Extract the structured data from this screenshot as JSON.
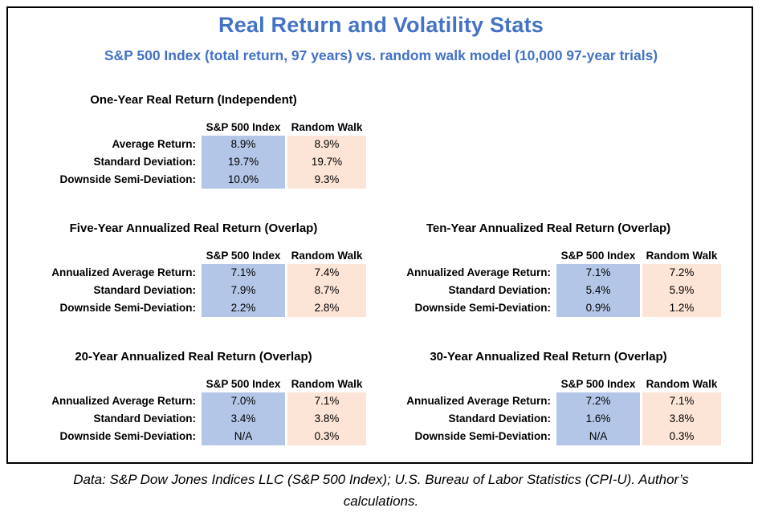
{
  "page": {
    "title": "Real Return and Volatility Stats",
    "subtitle": "S&P 500 Index (total return, 97 years) vs. random walk model (10,000 97-year trials)",
    "footer": "Data: S&P Dow Jones Indices LLC (S&P 500 Index); U.S. Bureau of Labor Statistics (CPI-U). Author’s calculations."
  },
  "colors": {
    "accent_blue": "#4472C4",
    "sp500_column_fill": "#B4C6E7",
    "random_walk_column_fill": "#FCE4D6",
    "border": "#000000",
    "background": "#FFFFFF"
  },
  "chart_data": [
    {
      "type": "table",
      "title": "One-Year Real Return (Independent)",
      "columns": [
        "S&P 500 Index",
        "Random Walk"
      ],
      "rows": [
        {
          "label": "Average Return:",
          "values": [
            "8.9%",
            "8.9%"
          ]
        },
        {
          "label": "Standard Deviation:",
          "values": [
            "19.7%",
            "19.7%"
          ]
        },
        {
          "label": "Downside Semi-Deviation:",
          "values": [
            "10.0%",
            "9.3%"
          ]
        }
      ]
    },
    {
      "type": "table",
      "title": "Five-Year Annualized Real Return (Overlap)",
      "columns": [
        "S&P 500 Index",
        "Random Walk"
      ],
      "rows": [
        {
          "label": "Annualized Average Return:",
          "values": [
            "7.1%",
            "7.4%"
          ]
        },
        {
          "label": "Standard Deviation:",
          "values": [
            "7.9%",
            "8.7%"
          ]
        },
        {
          "label": "Downside Semi-Deviation:",
          "values": [
            "2.2%",
            "2.8%"
          ]
        }
      ]
    },
    {
      "type": "table",
      "title": "Ten-Year Annualized Real Return (Overlap)",
      "columns": [
        "S&P 500 Index",
        "Random Walk"
      ],
      "rows": [
        {
          "label": "Annualized Average Return:",
          "values": [
            "7.1%",
            "7.2%"
          ]
        },
        {
          "label": "Standard Deviation:",
          "values": [
            "5.4%",
            "5.9%"
          ]
        },
        {
          "label": "Downside Semi-Deviation:",
          "values": [
            "0.9%",
            "1.2%"
          ]
        }
      ]
    },
    {
      "type": "table",
      "title": "20-Year Annualized Real Return (Overlap)",
      "columns": [
        "S&P 500 Index",
        "Random Walk"
      ],
      "rows": [
        {
          "label": "Annualized Average Return:",
          "values": [
            "7.0%",
            "7.1%"
          ]
        },
        {
          "label": "Standard Deviation:",
          "values": [
            "3.4%",
            "3.8%"
          ]
        },
        {
          "label": "Downside Semi-Deviation:",
          "values": [
            "N/A",
            "0.3%"
          ]
        }
      ]
    },
    {
      "type": "table",
      "title": "30-Year Annualized Real Return (Overlap)",
      "columns": [
        "S&P 500 Index",
        "Random Walk"
      ],
      "rows": [
        {
          "label": "Annualized Average Return:",
          "values": [
            "7.2%",
            "7.1%"
          ]
        },
        {
          "label": "Standard Deviation:",
          "values": [
            "1.6%",
            "3.8%"
          ]
        },
        {
          "label": "Downside Semi-Deviation:",
          "values": [
            "N/A",
            "0.3%"
          ]
        }
      ]
    }
  ]
}
